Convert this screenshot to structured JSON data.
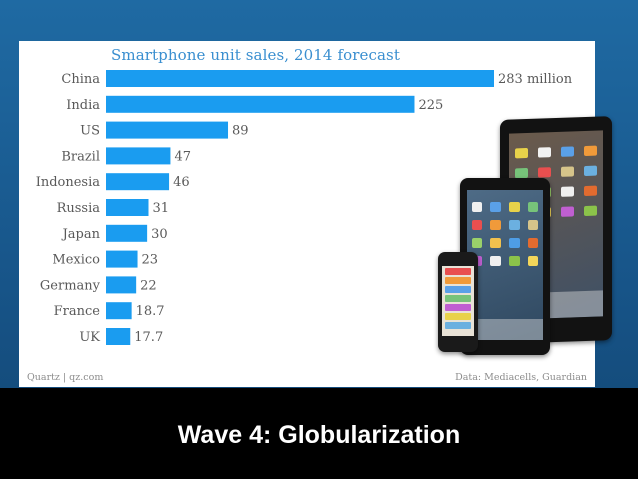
{
  "slide": {
    "title": "Wave 4: Globularization"
  },
  "chart_data": {
    "type": "bar",
    "orientation": "horizontal",
    "title": "Smartphone unit sales, 2014 forecast",
    "categories": [
      "China",
      "India",
      "US",
      "Brazil",
      "Indonesia",
      "Russia",
      "Japan",
      "Mexico",
      "Germany",
      "France",
      "UK"
    ],
    "values": [
      283,
      225,
      89,
      47,
      46,
      31,
      30,
      23,
      22,
      18.7,
      17.7
    ],
    "value_labels": [
      "283 million",
      "225",
      "89",
      "47",
      "46",
      "31",
      "30",
      "23",
      "22",
      "18.7",
      "17.7"
    ],
    "xlabel": "",
    "ylabel": "",
    "xlim": [
      0,
      283
    ],
    "grid": false,
    "legend": "none",
    "bar_color": "#1a9cf0",
    "source_left": "Quartz | qz.com",
    "source_right": "Data: Mediacells, Guardian"
  },
  "illustration": {
    "icon": "ipad-iphone-devices-icon"
  },
  "colors": {
    "background": "#1c5f93",
    "bottom_bar": "#000000",
    "title_text": "#3a8fd0",
    "label_text": "#595959"
  }
}
